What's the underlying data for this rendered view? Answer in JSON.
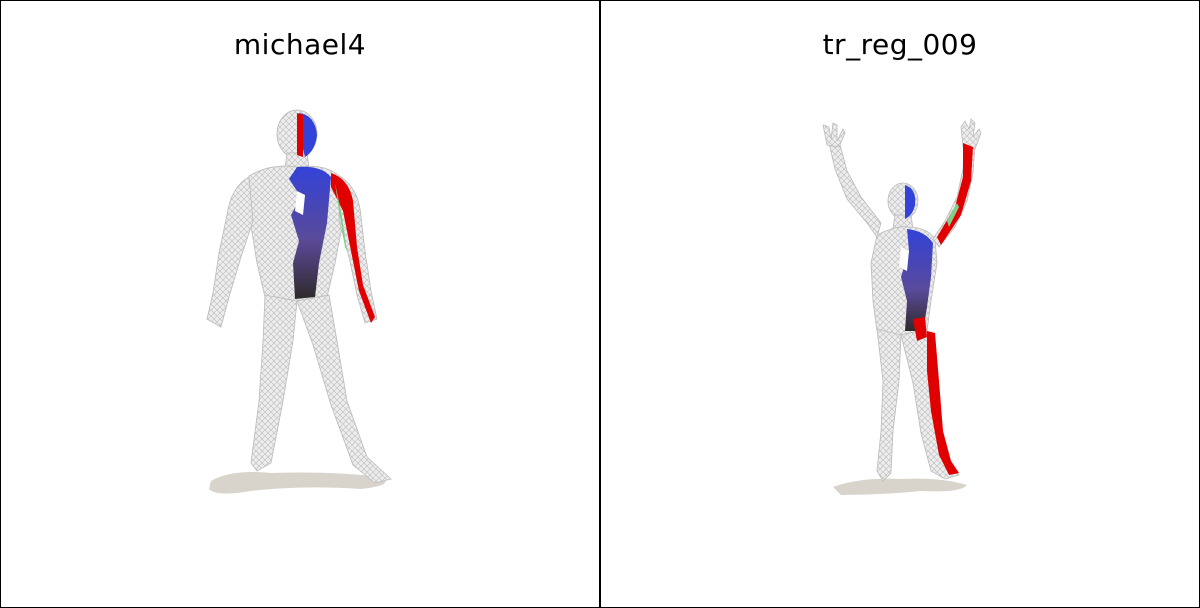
{
  "panels": [
    {
      "title": "michael4"
    },
    {
      "title": "tr_reg_009"
    }
  ],
  "colors": {
    "mesh": "#ececec",
    "mesh_stroke": "#b8b8b8",
    "shadow": "#d8d4cc",
    "red": "#e00000",
    "blue": "#3345d6",
    "dark": "#3a2e3a",
    "green": "#7fd08a"
  }
}
